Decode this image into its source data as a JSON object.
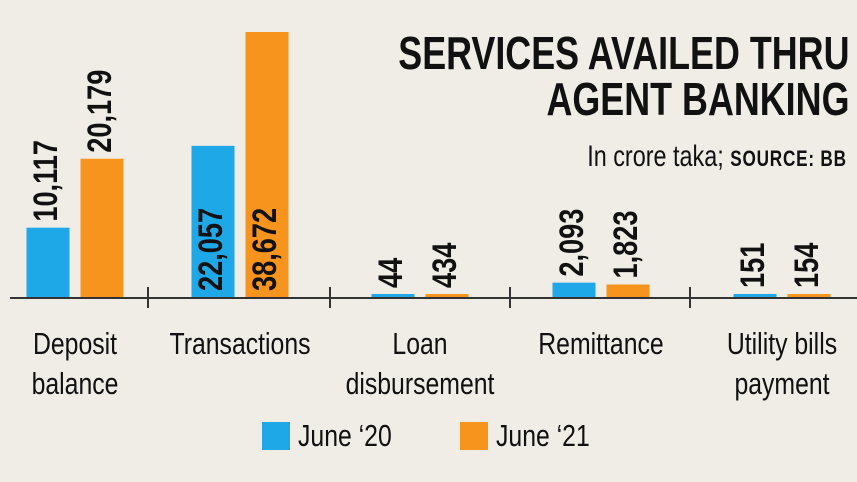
{
  "chart_data": {
    "type": "bar",
    "title": "SERVICES AVAILED THRU\nAGENT BANKING",
    "subtitle": "In crore taka;",
    "source": "SOURCE: BB",
    "categories": [
      "Deposit\nbalance",
      "Transactions",
      "Loan\ndisbursement",
      "Remittance",
      "Utility bills\npayment"
    ],
    "series": [
      {
        "name": "June ‘20",
        "color": "#1ea8e8",
        "values": [
          10117,
          22057,
          44,
          2093,
          151
        ],
        "value_labels": [
          "10,117",
          "22,057",
          "44",
          "2,093",
          "151"
        ]
      },
      {
        "name": "June ‘21",
        "color": "#f7941d",
        "values": [
          20179,
          38672,
          434,
          1823,
          154
        ],
        "value_labels": [
          "20,179",
          "38,672",
          "434",
          "1,823",
          "154"
        ]
      }
    ]
  }
}
